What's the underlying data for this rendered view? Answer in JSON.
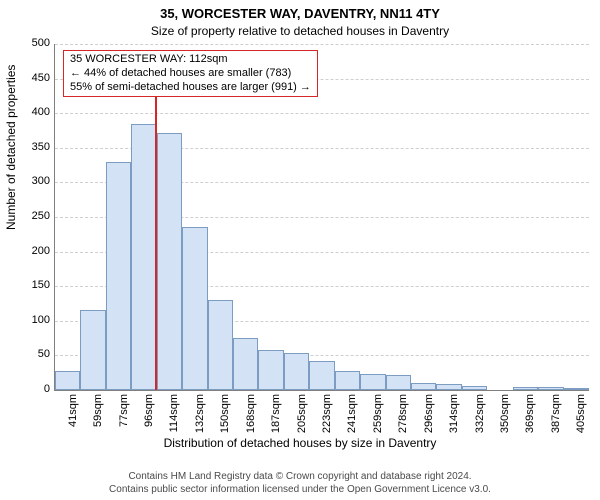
{
  "title": "35, WORCESTER WAY, DAVENTRY, NN11 4TY",
  "subtitle": "Size of property relative to detached houses in Daventry",
  "ylabel": "Number of detached properties",
  "xlabel": "Distribution of detached houses by size in Daventry",
  "title_fontsize": 13,
  "subtitle_fontsize": 12,
  "label_fontsize": 12,
  "tick_fontsize": 11,
  "attribution_fontsize": 10,
  "annotation_fontsize": 11,
  "chart": {
    "type": "histogram",
    "categories": [
      "41sqm",
      "59sqm",
      "77sqm",
      "96sqm",
      "114sqm",
      "132sqm",
      "150sqm",
      "168sqm",
      "187sqm",
      "205sqm",
      "223sqm",
      "241sqm",
      "259sqm",
      "278sqm",
      "296sqm",
      "314sqm",
      "332sqm",
      "350sqm",
      "369sqm",
      "387sqm",
      "405sqm"
    ],
    "values": [
      28,
      115,
      330,
      385,
      372,
      235,
      130,
      75,
      58,
      53,
      42,
      28,
      23,
      22,
      10,
      8,
      6,
      0,
      5,
      4,
      3
    ],
    "bar_fill": "#d3e3f5",
    "bar_edge": "#7d9cc1",
    "background_color": "#ffffff",
    "grid_color": "#cfcfcf",
    "ylim": [
      0,
      500
    ],
    "yticks": [
      0,
      50,
      100,
      150,
      200,
      250,
      300,
      350,
      400,
      450,
      500
    ],
    "bar_gap_ratio": 0.0,
    "marker": {
      "x_index_after": 3,
      "frac_between": 0.95,
      "color": "#d62728"
    },
    "annotation": {
      "line1": "35 WORCESTER WAY: 112sqm",
      "line2": "← 44% of detached houses are smaller (783)",
      "line3": "55% of semi-detached houses are larger (991) →",
      "border_color": "#d62728"
    }
  },
  "attribution": {
    "line1": "Contains HM Land Registry data © Crown copyright and database right 2024.",
    "line2": "Contains public sector information licensed under the Open Government Licence v3.0."
  }
}
